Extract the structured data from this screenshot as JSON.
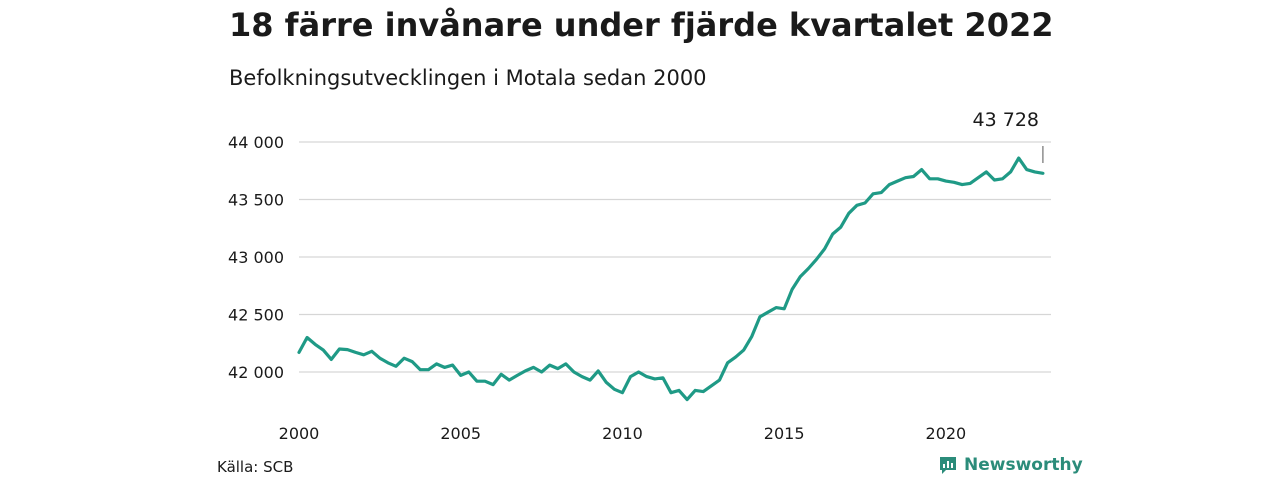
{
  "title": "18 färre invånare under fjärde kvartalet 2022",
  "subtitle": "Befolkningsutvecklingen i Motala sedan 2000",
  "source": "Källa: SCB",
  "brand": "Newsworthy",
  "colors": {
    "line": "#1f9a86",
    "grid": "#d6d6d6",
    "brand": "#2b8c7a"
  },
  "chart_data": {
    "type": "line",
    "title": "18 färre invånare under fjärde kvartalet 2022",
    "subtitle": "Befolkningsutvecklingen i Motala sedan 2000",
    "xlabel": "",
    "ylabel": "",
    "ylim": [
      41750,
      44050
    ],
    "xlim": [
      2000.0,
      2023.25
    ],
    "yticks": [
      42000,
      42500,
      43000,
      43500,
      44000
    ],
    "ytick_labels": [
      "42 000",
      "42 500",
      "43 000",
      "43 500",
      "44 000"
    ],
    "xticks": [
      2000,
      2005,
      2010,
      2015,
      2020
    ],
    "xtick_labels": [
      "2000",
      "2005",
      "2010",
      "2015",
      "2020"
    ],
    "grid": true,
    "end_label": "43 728",
    "series": [
      {
        "x": [
          2000.0,
          2000.25,
          2000.5,
          2000.75,
          2001.0,
          2001.25,
          2001.5,
          2001.75,
          2002.0,
          2002.25,
          2002.5,
          2002.75,
          2003.0,
          2003.25,
          2003.5,
          2003.75,
          2004.0,
          2004.25,
          2004.5,
          2004.75,
          2005.0,
          2005.25,
          2005.5,
          2005.75,
          2006.0,
          2006.25,
          2006.5,
          2006.75,
          2007.0,
          2007.25,
          2007.5,
          2007.75,
          2008.0,
          2008.25,
          2008.5,
          2008.75,
          2009.0,
          2009.25,
          2009.5,
          2009.75,
          2010.0,
          2010.25,
          2010.5,
          2010.75,
          2011.0,
          2011.25,
          2011.5,
          2011.75,
          2012.0,
          2012.25,
          2012.5,
          2012.75,
          2013.0,
          2013.25,
          2013.5,
          2013.75,
          2014.0,
          2014.25,
          2014.5,
          2014.75,
          2015.0,
          2015.25,
          2015.5,
          2015.75,
          2016.0,
          2016.25,
          2016.5,
          2016.75,
          2017.0,
          2017.25,
          2017.5,
          2017.75,
          2018.0,
          2018.25,
          2018.5,
          2018.75,
          2019.0,
          2019.25,
          2019.5,
          2019.75,
          2020.0,
          2020.25,
          2020.5,
          2020.75,
          2021.0,
          2021.25,
          2021.5,
          2021.75,
          2022.0,
          2022.25,
          2022.5,
          2022.75,
          2023.0
        ],
        "values": [
          42170,
          42300,
          42240,
          42190,
          42110,
          42200,
          42195,
          42170,
          42150,
          42180,
          42120,
          42080,
          42050,
          42120,
          42090,
          42020,
          42020,
          42070,
          42040,
          42060,
          41970,
          42000,
          41920,
          41920,
          41890,
          41980,
          41930,
          41970,
          42010,
          42040,
          42000,
          42060,
          42030,
          42070,
          42000,
          41960,
          41930,
          42010,
          41910,
          41850,
          41820,
          41960,
          42000,
          41960,
          41940,
          41950,
          41820,
          41840,
          41760,
          41840,
          41830,
          41880,
          41930,
          42080,
          42130,
          42190,
          42310,
          42480,
          42520,
          42560,
          42550,
          42720,
          42830,
          42900,
          42980,
          43070,
          43200,
          43260,
          43380,
          43450,
          43470,
          43550,
          43560,
          43630,
          43660,
          43690,
          43700,
          43760,
          43680,
          43680,
          43660,
          43650,
          43630,
          43640,
          43690,
          43740,
          43670,
          43680,
          43740,
          43860,
          43760,
          43740,
          43728
        ]
      }
    ]
  }
}
